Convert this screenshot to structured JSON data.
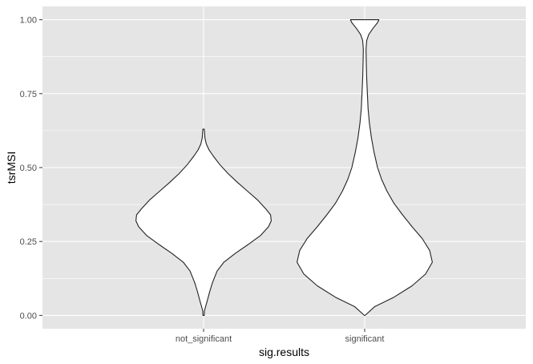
{
  "chart_data": {
    "type": "violin",
    "xlabel": "sig.results",
    "ylabel": "tsrMSI",
    "categories": [
      "not_significant",
      "significant"
    ],
    "ylim": [
      -0.045,
      1.045
    ],
    "y_ticks": [
      0.0,
      0.25,
      0.5,
      0.75,
      1.0
    ],
    "y_tick_labels": [
      "0.00",
      "0.25",
      "0.50",
      "0.75",
      "1.00"
    ],
    "grid": true,
    "background_color": "#e5e5e5",
    "grid_color": "#ffffff",
    "violin_fill": "#ffffff",
    "violin_stroke": "#222222",
    "series": [
      {
        "category": "not_significant",
        "profile": [
          [
            0.0,
            0.01
          ],
          [
            0.015,
            0.012
          ],
          [
            0.03,
            0.03
          ],
          [
            0.05,
            0.055
          ],
          [
            0.08,
            0.09
          ],
          [
            0.11,
            0.13
          ],
          [
            0.15,
            0.2
          ],
          [
            0.18,
            0.3
          ],
          [
            0.21,
            0.47
          ],
          [
            0.24,
            0.66
          ],
          [
            0.27,
            0.84
          ],
          [
            0.3,
            0.96
          ],
          [
            0.32,
            1.0
          ],
          [
            0.34,
            0.99
          ],
          [
            0.36,
            0.92
          ],
          [
            0.39,
            0.8
          ],
          [
            0.42,
            0.65
          ],
          [
            0.45,
            0.5
          ],
          [
            0.48,
            0.36
          ],
          [
            0.51,
            0.24
          ],
          [
            0.54,
            0.14
          ],
          [
            0.56,
            0.08
          ],
          [
            0.58,
            0.04
          ],
          [
            0.6,
            0.02
          ],
          [
            0.62,
            0.014
          ],
          [
            0.63,
            0.01
          ]
        ]
      },
      {
        "category": "significant",
        "profile": [
          [
            0.0,
            0.005
          ],
          [
            0.03,
            0.15
          ],
          [
            0.06,
            0.42
          ],
          [
            0.1,
            0.7
          ],
          [
            0.14,
            0.9
          ],
          [
            0.18,
            1.0
          ],
          [
            0.22,
            0.96
          ],
          [
            0.26,
            0.85
          ],
          [
            0.3,
            0.7
          ],
          [
            0.34,
            0.56
          ],
          [
            0.38,
            0.43
          ],
          [
            0.42,
            0.33
          ],
          [
            0.46,
            0.25
          ],
          [
            0.5,
            0.19
          ],
          [
            0.55,
            0.14
          ],
          [
            0.6,
            0.1
          ],
          [
            0.65,
            0.07
          ],
          [
            0.7,
            0.05
          ],
          [
            0.75,
            0.04
          ],
          [
            0.8,
            0.03
          ],
          [
            0.85,
            0.024
          ],
          [
            0.9,
            0.02
          ],
          [
            0.93,
            0.03
          ],
          [
            0.95,
            0.06
          ],
          [
            0.97,
            0.12
          ],
          [
            0.99,
            0.19
          ],
          [
            1.0,
            0.21
          ]
        ]
      }
    ]
  }
}
